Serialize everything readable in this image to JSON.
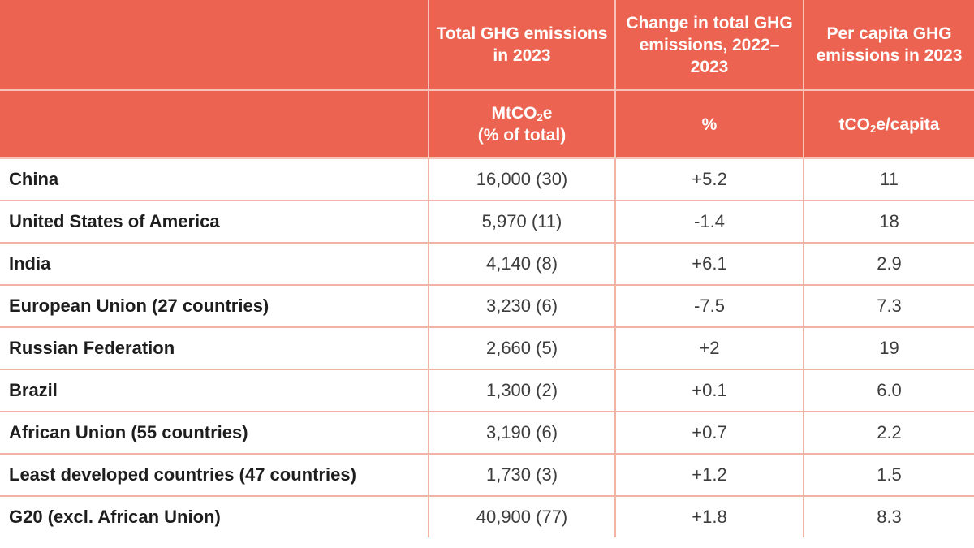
{
  "colors": {
    "header_bg": "#ec6451",
    "header_text": "#ffffff",
    "grid_line": "#f3b2a6",
    "body_text": "#3d3d3d"
  },
  "header": {
    "col_total": "Total GHG emissions in 2023",
    "col_change": "Change in total GHG emissions, 2022–2023",
    "col_capita": "Per capita GHG emissions in 2023"
  },
  "units": {
    "total_prefix": "MtCO",
    "total_sub": "2",
    "total_suffix": "e",
    "total_note": "(% of total)",
    "change": "%",
    "capita_prefix": "tCO",
    "capita_sub": "2",
    "capita_suffix": "e/capita"
  },
  "rows": [
    {
      "name": "China",
      "total": "16,000 (30)",
      "change": "+5.2",
      "capita": "11"
    },
    {
      "name": "United States of America",
      "total": "5,970 (11)",
      "change": "-1.4",
      "capita": "18"
    },
    {
      "name": "India",
      "total": "4,140 (8)",
      "change": "+6.1",
      "capita": "2.9"
    },
    {
      "name": "European Union (27 countries)",
      "total": "3,230 (6)",
      "change": "-7.5",
      "capita": "7.3"
    },
    {
      "name": "Russian Federation",
      "total": "2,660 (5)",
      "change": "+2",
      "capita": "19"
    },
    {
      "name": "Brazil",
      "total": "1,300 (2)",
      "change": "+0.1",
      "capita": "6.0"
    },
    {
      "name": "African Union (55 countries)",
      "total": "3,190 (6)",
      "change": "+0.7",
      "capita": "2.2"
    },
    {
      "name": "Least developed countries (47 countries)",
      "total": "1,730 (3)",
      "change": "+1.2",
      "capita": "1.5"
    },
    {
      "name": "G20 (excl. African Union)",
      "total": "40,900 (77)",
      "change": "+1.8",
      "capita": "8.3"
    }
  ]
}
